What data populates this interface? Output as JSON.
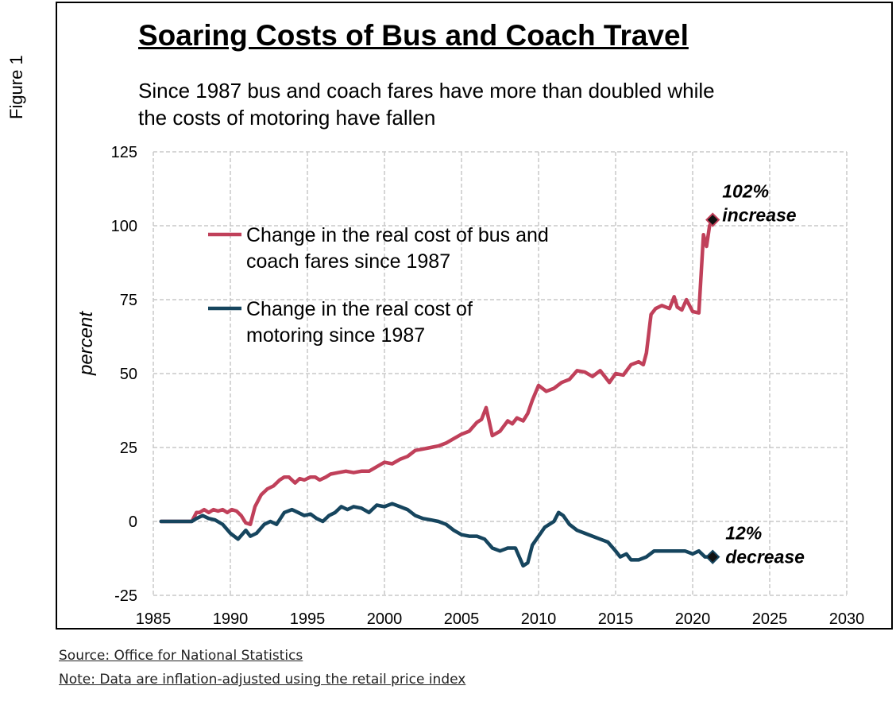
{
  "figure_label": "Figure 1",
  "source_note": "Source: Office for National Statistics",
  "data_note": "Note:  Data are inflation-adjusted using the retail price index",
  "colors": {
    "bus": "#c0405a",
    "motoring": "#16455e",
    "grid": "#c8c8c8"
  },
  "chart_data": {
    "type": "line",
    "title": "Soaring Costs of Bus and Coach Travel",
    "subtitle_lines": [
      "Since 1987 bus and coach fares have more than doubled while",
      "the costs of motoring have fallen"
    ],
    "xlabel": "",
    "ylabel": "percent",
    "xlim": [
      1985,
      2030
    ],
    "ylim": [
      -25,
      125
    ],
    "xticks": [
      1985,
      1990,
      1995,
      2000,
      2005,
      2010,
      2015,
      2020,
      2025,
      2030
    ],
    "yticks": [
      -25,
      0,
      25,
      50,
      75,
      100,
      125
    ],
    "grid": true,
    "legend_position": "upper-left",
    "series": [
      {
        "name": "bus",
        "legend_lines": [
          "Change in the real cost of bus and",
          "coach fares since 1987"
        ],
        "color": "#c0405a",
        "x": [
          1985.5,
          1987.5,
          1987.8,
          1988.0,
          1988.3,
          1988.6,
          1988.9,
          1989.2,
          1989.5,
          1989.8,
          1990.1,
          1990.4,
          1990.7,
          1991.0,
          1991.3,
          1991.6,
          1992.0,
          1992.4,
          1992.8,
          1993.2,
          1993.5,
          1993.8,
          1994.2,
          1994.5,
          1994.8,
          1995.2,
          1995.5,
          1995.8,
          1996.2,
          1996.5,
          1997.0,
          1997.5,
          1998.0,
          1998.5,
          1999.0,
          1999.5,
          2000.0,
          2000.5,
          2001.0,
          2001.5,
          2002.0,
          2002.5,
          2003.0,
          2003.5,
          2004.0,
          2004.5,
          2005.0,
          2005.5,
          2006.0,
          2006.3,
          2006.6,
          2007.0,
          2007.5,
          2008.0,
          2008.3,
          2008.6,
          2009.0,
          2009.3,
          2009.6,
          2010.0,
          2010.5,
          2011.0,
          2011.5,
          2012.0,
          2012.5,
          2013.0,
          2013.5,
          2014.0,
          2014.3,
          2014.6,
          2015.0,
          2015.5,
          2016.0,
          2016.5,
          2016.8,
          2017.0,
          2017.3,
          2017.6,
          2018.0,
          2018.5,
          2018.8,
          2019.0,
          2019.3,
          2019.6,
          2020.0,
          2020.4,
          2020.7,
          2020.9,
          2021.1,
          2021.3
        ],
        "y": [
          0,
          0,
          3,
          3,
          4,
          3,
          4,
          3.5,
          4,
          3,
          4,
          3.5,
          2,
          -0.5,
          -1,
          5,
          9,
          11,
          12,
          14,
          15,
          15,
          13,
          14.5,
          14,
          15,
          15,
          14,
          15,
          16,
          16.5,
          17,
          16.5,
          17,
          17,
          18.5,
          20,
          19.5,
          21,
          22,
          24,
          24.5,
          25,
          25.5,
          26.5,
          28,
          29.5,
          30.5,
          33.5,
          34.5,
          38.5,
          29,
          30.5,
          34,
          33,
          35,
          34,
          36.5,
          41,
          46,
          44,
          45,
          47,
          48,
          51,
          50.5,
          49,
          51,
          49,
          47,
          50,
          49.5,
          53,
          54,
          53,
          57,
          70,
          72,
          73,
          72,
          76,
          72.5,
          71.5,
          75,
          71,
          70.5,
          97,
          93,
          100,
          102
        ]
      },
      {
        "name": "motoring",
        "legend_lines": [
          "Change in the real cost of",
          "motoring since 1987"
        ],
        "color": "#16455e",
        "x": [
          1985.5,
          1987.5,
          1987.8,
          1988.2,
          1988.6,
          1989.0,
          1989.5,
          1990.0,
          1990.5,
          1991.0,
          1991.3,
          1991.7,
          1992.2,
          1992.6,
          1993.0,
          1993.5,
          1994.0,
          1994.4,
          1994.8,
          1995.2,
          1995.6,
          1996.0,
          1996.4,
          1996.8,
          1997.2,
          1997.6,
          1998.0,
          1998.5,
          1999.0,
          1999.5,
          2000.0,
          2000.5,
          2001.0,
          2001.5,
          2002.0,
          2002.5,
          2003.0,
          2003.5,
          2004.0,
          2004.5,
          2005.0,
          2005.5,
          2006.0,
          2006.5,
          2007.0,
          2007.5,
          2008.0,
          2008.5,
          2009.0,
          2009.3,
          2009.6,
          2010.0,
          2010.4,
          2010.7,
          2011.0,
          2011.3,
          2011.6,
          2012.0,
          2012.5,
          2013.0,
          2013.5,
          2014.0,
          2014.5,
          2015.0,
          2015.3,
          2015.7,
          2016.0,
          2016.5,
          2017.0,
          2017.5,
          2018.0,
          2018.5,
          2019.0,
          2019.5,
          2020.0,
          2020.4,
          2020.8,
          2021.1,
          2021.3
        ],
        "y": [
          0,
          0,
          1,
          2,
          1,
          0.5,
          -1,
          -4,
          -6,
          -3,
          -5,
          -4,
          -1,
          0,
          -1,
          3,
          4,
          3,
          2,
          2.5,
          1,
          0,
          2,
          3,
          5,
          4,
          5,
          4.5,
          3,
          5.5,
          5,
          6,
          5,
          4,
          2,
          1,
          0.5,
          0,
          -1,
          -3,
          -4.5,
          -5,
          -5,
          -6,
          -9,
          -10,
          -9,
          -9,
          -15,
          -14,
          -8,
          -5,
          -2,
          -1,
          0,
          3,
          2,
          -1,
          -3,
          -4,
          -5,
          -6,
          -7,
          -10,
          -12,
          -11,
          -13,
          -13,
          -12,
          -10,
          -10,
          -10,
          -10,
          -10,
          -11,
          -10,
          -12,
          -12,
          -12
        ]
      }
    ],
    "annotations": [
      {
        "series": "bus",
        "x": 2021.3,
        "y": 102,
        "lines": [
          "102%",
          "increase"
        ]
      },
      {
        "series": "motoring",
        "x": 2021.3,
        "y": -12,
        "lines": [
          "12%",
          "decrease"
        ]
      }
    ]
  }
}
